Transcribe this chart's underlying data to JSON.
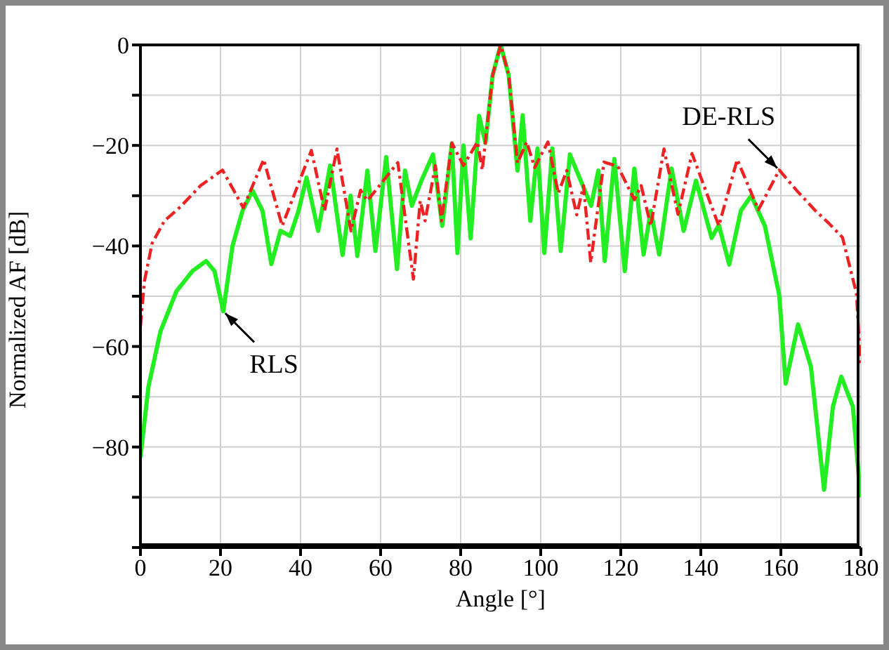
{
  "chart_data": {
    "type": "line",
    "xlabel": "Angle [°]",
    "ylabel": "Normalized AF  [dB]",
    "xlim": [
      0,
      180
    ],
    "xticks": [
      0,
      20,
      40,
      60,
      80,
      100,
      120,
      140,
      160,
      180
    ],
    "ylim": [
      -100,
      0
    ],
    "yticks": [
      {
        "value": -100,
        "label": null
      },
      {
        "value": -90,
        "label": null
      },
      -80,
      {
        "value": -70,
        "label": null
      },
      -60,
      {
        "value": -50,
        "label": null
      },
      -40,
      {
        "value": -30,
        "label": null
      },
      -20,
      {
        "value": -10,
        "label": null
      },
      0
    ],
    "grid": true,
    "marker": "none",
    "series": [
      {
        "color": "#22ee22",
        "line_style": "solid",
        "x": [
          0,
          2,
          5,
          9,
          13,
          16.4,
          18.5,
          20.7,
          23,
          25.5,
          28,
          30.5,
          32.7,
          35,
          37.4,
          39.5,
          41.5,
          44.4,
          47.4,
          50.5,
          52.5,
          54.2,
          56.7,
          58.7,
          61.4,
          64.1,
          66.1,
          67.8,
          70.2,
          73.1,
          75.4,
          77.8,
          79.2,
          80.7,
          82.5,
          84.6,
          86.2,
          88,
          90,
          92,
          94.2,
          95.5,
          97.4,
          99.2,
          100.9,
          102.9,
          105,
          107.3,
          110,
          112.6,
          114.4,
          116,
          118.4,
          121,
          123.4,
          125.7,
          127.5,
          129.6,
          132.7,
          135.7,
          138.8,
          142.7,
          144.5,
          147.1,
          150,
          152.6,
          156,
          159.6,
          161.2,
          164.3,
          167.5,
          170.8,
          173,
          175.1,
          178,
          179.9
        ],
        "values": [
          -82,
          -68,
          -57,
          -49,
          -45,
          -43,
          -45,
          -53,
          -40,
          -33,
          -29,
          -33,
          -43.6,
          -37,
          -38,
          -33,
          -26.4,
          -37,
          -24,
          -41.8,
          -30,
          -42,
          -25,
          -41,
          -22.3,
          -44.6,
          -25,
          -32,
          -27,
          -21.8,
          -36,
          -19.6,
          -41.4,
          -20,
          -38.5,
          -14.1,
          -19.5,
          -6,
          0,
          -6,
          -25,
          -14,
          -35,
          -20.6,
          -41.4,
          -20.6,
          -41,
          -21.8,
          -27,
          -32,
          -25,
          -43,
          -22.7,
          -45,
          -24.6,
          -41.7,
          -33,
          -41.7,
          -24.6,
          -37,
          -27,
          -38.4,
          -35.8,
          -43.7,
          -33,
          -30,
          -36,
          -49.8,
          -67.4,
          -55.6,
          -64,
          -88.5,
          -72,
          -66,
          -72,
          -90
        ]
      },
      {
        "color": "#ee2222",
        "line_style": "dashed",
        "x": [
          0,
          1,
          2.9,
          6,
          10,
          15,
          20.5,
          25.7,
          30.8,
          35.4,
          42.7,
          46,
          49.1,
          52.6,
          55,
          56.7,
          60.2,
          64.3,
          68.2,
          69.9,
          71.1,
          73.7,
          75.2,
          77.8,
          80.7,
          84.2,
          85.4,
          88,
          90,
          92,
          94.2,
          96.5,
          98.5,
          101.8,
          104.4,
          106.5,
          109,
          110.7,
          112.5,
          115.8,
          119.3,
          123.4,
          125.1,
          127.5,
          130.8,
          134.3,
          137.8,
          144.5,
          149.1,
          154.4,
          159.6,
          164,
          168.4,
          172,
          175.4,
          178.9,
          179.9
        ],
        "values": [
          -56,
          -47,
          -39.5,
          -35,
          -32.2,
          -28,
          -24.9,
          -32.4,
          -22.8,
          -36,
          -21,
          -33,
          -20.7,
          -37,
          -28.9,
          -31,
          -27.5,
          -23.4,
          -46.6,
          -31,
          -35,
          -24,
          -35,
          -19.5,
          -24,
          -19.3,
          -24.9,
          -6,
          0,
          -6,
          -23.5,
          -19.3,
          -24.4,
          -19.3,
          -29.5,
          -25,
          -33.8,
          -28,
          -43.3,
          -23.3,
          -24.2,
          -30.8,
          -28,
          -36,
          -20.7,
          -33.7,
          -21.6,
          -36,
          -22.8,
          -32.8,
          -24.9,
          -29,
          -32.8,
          -35.5,
          -38.3,
          -49.5,
          -64
        ]
      }
    ],
    "annotations": [
      {
        "text": "RLS",
        "x": 20.7,
        "y": -53
      },
      {
        "text": "DE-RLS",
        "x": 159.6,
        "y": -24.9
      }
    ]
  }
}
